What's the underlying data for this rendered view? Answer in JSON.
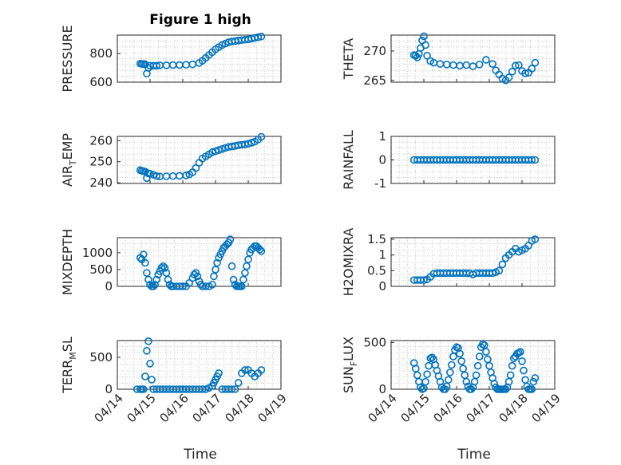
{
  "figure": {
    "title": "Figure 1 high",
    "xlabel": "Time"
  },
  "colors": {
    "marker": "#0072BD",
    "axis": "#262626",
    "grid": "#b8b8b8"
  },
  "chart_data": [
    {
      "type": "scatter",
      "ylabel": "PRESSURE",
      "ylabel_sub": "",
      "ylabel_tail": "",
      "ylim": [
        600,
        930
      ],
      "yticks": [
        600,
        800
      ],
      "ytick_labels": [
        "600",
        "800"
      ],
      "x": [
        14.7,
        14.75,
        14.8,
        14.85,
        14.9,
        14.95,
        15.0,
        15.1,
        15.2,
        15.3,
        15.5,
        15.7,
        15.9,
        16.1,
        16.3,
        16.5,
        16.6,
        16.7,
        16.8,
        16.9,
        17.0,
        17.1,
        17.2,
        17.3,
        17.4,
        17.5,
        17.6,
        17.7,
        17.8,
        17.9,
        18.0,
        18.1,
        18.2,
        18.3,
        18.4
      ],
      "y": [
        730,
        728,
        727,
        726,
        660,
        700,
        715,
        715,
        715,
        718,
        718,
        720,
        720,
        722,
        725,
        735,
        750,
        770,
        790,
        810,
        830,
        845,
        860,
        870,
        880,
        885,
        888,
        892,
        895,
        898,
        900,
        905,
        910,
        915,
        920
      ]
    },
    {
      "type": "scatter",
      "ylabel": "THETA",
      "ylabel_sub": "",
      "ylabel_tail": "",
      "ylim": [
        264.7,
        272.7
      ],
      "yticks": [
        265,
        270
      ],
      "ytick_labels": [
        "265",
        "270"
      ],
      "x": [
        14.7,
        14.75,
        14.8,
        14.85,
        14.9,
        14.95,
        15.0,
        15.05,
        15.1,
        15.2,
        15.3,
        15.5,
        15.7,
        15.9,
        16.1,
        16.3,
        16.5,
        16.7,
        16.9,
        17.1,
        17.2,
        17.3,
        17.4,
        17.5,
        17.6,
        17.7,
        17.8,
        17.9,
        18.0,
        18.1,
        18.2,
        18.3,
        18.4
      ],
      "y": [
        269.3,
        269.2,
        268.9,
        269.5,
        270.5,
        271.8,
        272.5,
        271.0,
        269.2,
        268.3,
        268.0,
        267.8,
        267.7,
        267.6,
        267.5,
        267.6,
        267.4,
        267.7,
        268.5,
        267.8,
        266.7,
        266.0,
        265.3,
        265.0,
        265.5,
        266.5,
        267.5,
        267.6,
        266.6,
        266.2,
        266.3,
        267.0,
        268.0
      ]
    },
    {
      "type": "scatter",
      "ylabel": "AIR",
      "ylabel_sub": "T",
      "ylabel_tail": "EMP",
      "ylim": [
        239.7,
        262
      ],
      "yticks": [
        240,
        250,
        260
      ],
      "ytick_labels": [
        "240",
        "250",
        "260"
      ],
      "x": [
        14.7,
        14.75,
        14.8,
        14.85,
        14.9,
        14.95,
        15.0,
        15.1,
        15.2,
        15.3,
        15.5,
        15.7,
        15.9,
        16.1,
        16.2,
        16.3,
        16.4,
        16.5,
        16.6,
        16.7,
        16.8,
        16.9,
        17.0,
        17.1,
        17.2,
        17.3,
        17.4,
        17.5,
        17.6,
        17.7,
        17.8,
        17.9,
        18.0,
        18.1,
        18.2,
        18.3,
        18.4
      ],
      "y": [
        246,
        245.7,
        245.5,
        245.3,
        242.2,
        244.5,
        244.3,
        243.8,
        243.2,
        243.0,
        243.1,
        243.2,
        243.3,
        243.5,
        244.0,
        245.0,
        247.0,
        249.5,
        251.5,
        252.5,
        253.5,
        254.5,
        255.0,
        255.5,
        256.0,
        256.5,
        257.0,
        257.2,
        257.5,
        257.8,
        258.0,
        258.2,
        258.5,
        259.0,
        259.5,
        260.5,
        261.8
      ]
    },
    {
      "type": "scatter",
      "ylabel": "RAINFALL",
      "ylabel_sub": "",
      "ylabel_tail": "",
      "ylim": [
        -1,
        1
      ],
      "yticks": [
        -1,
        0,
        1
      ],
      "ytick_labels": [
        "-1",
        "0",
        "1"
      ],
      "x": [
        14.7,
        14.8,
        14.9,
        15.0,
        15.1,
        15.2,
        15.3,
        15.4,
        15.5,
        15.6,
        15.7,
        15.8,
        15.9,
        16.0,
        16.1,
        16.2,
        16.3,
        16.4,
        16.5,
        16.6,
        16.7,
        16.8,
        16.9,
        17.0,
        17.1,
        17.2,
        17.3,
        17.4,
        17.5,
        17.6,
        17.7,
        17.8,
        17.9,
        18.0,
        18.1,
        18.2,
        18.3,
        18.4
      ],
      "y": [
        0,
        0,
        0,
        0,
        0,
        0,
        0,
        0,
        0,
        0,
        0,
        0,
        0,
        0,
        0,
        0,
        0,
        0,
        0,
        0,
        0,
        0,
        0,
        0,
        0,
        0,
        0,
        0,
        0,
        0,
        0,
        0,
        0,
        0,
        0,
        0,
        0,
        0
      ]
    },
    {
      "type": "scatter",
      "ylabel": "MIXDEPTH",
      "ylabel_sub": "",
      "ylabel_tail": "",
      "ylim": [
        0,
        1450
      ],
      "yticks": [
        0,
        500,
        1000
      ],
      "ytick_labels": [
        "0",
        "500",
        "1000"
      ],
      "x": [
        14.7,
        14.75,
        14.8,
        14.85,
        14.9,
        14.95,
        15.0,
        15.05,
        15.1,
        15.15,
        15.2,
        15.25,
        15.3,
        15.35,
        15.4,
        15.45,
        15.5,
        15.55,
        15.6,
        15.65,
        15.7,
        15.8,
        15.9,
        16.0,
        16.1,
        16.2,
        16.3,
        16.35,
        16.4,
        16.45,
        16.5,
        16.55,
        16.6,
        16.7,
        16.8,
        16.9,
        16.95,
        17.0,
        17.05,
        17.1,
        17.15,
        17.2,
        17.25,
        17.3,
        17.35,
        17.4,
        17.45,
        17.5,
        17.55,
        17.6,
        17.65,
        17.7,
        17.75,
        17.8,
        17.85,
        17.9,
        17.95,
        18.0,
        18.05,
        18.1,
        18.15,
        18.2,
        18.25,
        18.3,
        18.35,
        18.4
      ],
      "y": [
        850,
        800,
        950,
        700,
        400,
        200,
        50,
        0,
        0,
        50,
        200,
        350,
        450,
        550,
        600,
        550,
        400,
        200,
        50,
        0,
        0,
        0,
        0,
        0,
        0,
        100,
        250,
        350,
        400,
        300,
        150,
        50,
        0,
        0,
        0,
        50,
        300,
        500,
        700,
        850,
        950,
        1050,
        1150,
        1200,
        1250,
        1300,
        1400,
        600,
        200,
        50,
        0,
        0,
        0,
        0,
        200,
        400,
        600,
        800,
        1000,
        1100,
        1150,
        1200,
        1200,
        1150,
        1100,
        1050
      ]
    },
    {
      "type": "scatter",
      "ylabel": "H2OMIXRA",
      "ylabel_sub": "",
      "ylabel_tail": "",
      "ylim": [
        0,
        1.55
      ],
      "yticks": [
        0,
        0.5,
        1,
        1.5
      ],
      "ytick_labels": [
        "0",
        "0.5",
        "1",
        "1.5"
      ],
      "x": [
        14.7,
        14.8,
        14.9,
        15.0,
        15.1,
        15.2,
        15.3,
        15.4,
        15.5,
        15.6,
        15.7,
        15.8,
        15.9,
        16.0,
        16.1,
        16.2,
        16.3,
        16.4,
        16.5,
        16.6,
        16.7,
        16.8,
        16.9,
        17.0,
        17.1,
        17.2,
        17.3,
        17.4,
        17.5,
        17.6,
        17.7,
        17.8,
        17.9,
        18.0,
        18.1,
        18.2,
        18.3,
        18.4
      ],
      "y": [
        0.2,
        0.2,
        0.2,
        0.2,
        0.22,
        0.3,
        0.4,
        0.42,
        0.42,
        0.42,
        0.42,
        0.42,
        0.42,
        0.42,
        0.42,
        0.42,
        0.42,
        0.42,
        0.38,
        0.42,
        0.42,
        0.42,
        0.42,
        0.42,
        0.42,
        0.45,
        0.5,
        0.7,
        0.9,
        1.0,
        1.1,
        1.2,
        1.1,
        1.15,
        1.2,
        1.3,
        1.45,
        1.5
      ]
    },
    {
      "type": "scatter",
      "ylabel": "TERR",
      "ylabel_sub": "M",
      "ylabel_tail": "SL",
      "ylim": [
        0,
        760
      ],
      "yticks": [
        0,
        500
      ],
      "ytick_labels": [
        "0",
        "500"
      ],
      "x": [
        14.6,
        14.7,
        14.75,
        14.8,
        14.85,
        14.9,
        14.95,
        15.0,
        15.05,
        15.1,
        15.2,
        15.3,
        15.4,
        15.5,
        15.6,
        15.7,
        15.8,
        15.9,
        16.0,
        16.1,
        16.2,
        16.3,
        16.4,
        16.5,
        16.6,
        16.7,
        16.8,
        16.9,
        16.95,
        17.0,
        17.05,
        17.1,
        17.2,
        17.3,
        17.4,
        17.5,
        17.6,
        17.7,
        17.8,
        17.9,
        18.0,
        18.1,
        18.2,
        18.3,
        18.4
      ],
      "y": [
        0,
        0,
        0,
        0,
        200,
        600,
        750,
        400,
        150,
        0,
        0,
        0,
        0,
        0,
        0,
        0,
        0,
        0,
        0,
        0,
        0,
        0,
        0,
        0,
        0,
        0,
        20,
        50,
        100,
        150,
        200,
        250,
        0,
        0,
        0,
        0,
        0,
        100,
        250,
        300,
        300,
        250,
        200,
        250,
        300
      ]
    },
    {
      "type": "scatter",
      "ylabel": "SUN",
      "ylabel_sub": "F",
      "ylabel_tail": "LUX",
      "ylim": [
        0,
        520
      ],
      "yticks": [
        0,
        500
      ],
      "ytick_labels": [
        "0",
        "500"
      ],
      "x": [
        14.7,
        14.75,
        14.8,
        14.85,
        14.9,
        14.95,
        15.0,
        15.05,
        15.1,
        15.15,
        15.2,
        15.25,
        15.3,
        15.35,
        15.4,
        15.45,
        15.5,
        15.55,
        15.6,
        15.65,
        15.7,
        15.75,
        15.8,
        15.85,
        15.9,
        15.95,
        16.0,
        16.05,
        16.1,
        16.15,
        16.2,
        16.25,
        16.3,
        16.35,
        16.4,
        16.45,
        16.5,
        16.55,
        16.6,
        16.65,
        16.7,
        16.75,
        16.8,
        16.85,
        16.9,
        16.95,
        17.0,
        17.05,
        17.1,
        17.15,
        17.2,
        17.25,
        17.3,
        17.35,
        17.4,
        17.45,
        17.5,
        17.55,
        17.6,
        17.65,
        17.7,
        17.75,
        17.8,
        17.85,
        17.9,
        17.95,
        18.0,
        18.05,
        18.1,
        18.15,
        18.2,
        18.25,
        18.3,
        18.35,
        18.4
      ],
      "y": [
        280,
        220,
        150,
        80,
        20,
        0,
        10,
        80,
        160,
        250,
        330,
        340,
        320,
        260,
        200,
        140,
        80,
        20,
        0,
        0,
        30,
        100,
        180,
        260,
        350,
        420,
        450,
        440,
        380,
        300,
        220,
        150,
        80,
        30,
        0,
        0,
        20,
        80,
        150,
        250,
        350,
        450,
        480,
        470,
        400,
        320,
        250,
        180,
        120,
        60,
        20,
        0,
        0,
        0,
        0,
        0,
        0,
        20,
        80,
        150,
        250,
        330,
        350,
        380,
        390,
        400,
        300,
        200,
        100,
        30,
        0,
        0,
        0,
        80,
        120
      ]
    }
  ],
  "shared_x": {
    "xlim": [
      14.0,
      19.0
    ],
    "ticks": [
      14,
      15,
      16,
      17,
      18,
      19
    ],
    "tick_labels": [
      "04/14",
      "04/15",
      "04/16",
      "04/17",
      "04/18",
      "04/19"
    ]
  }
}
